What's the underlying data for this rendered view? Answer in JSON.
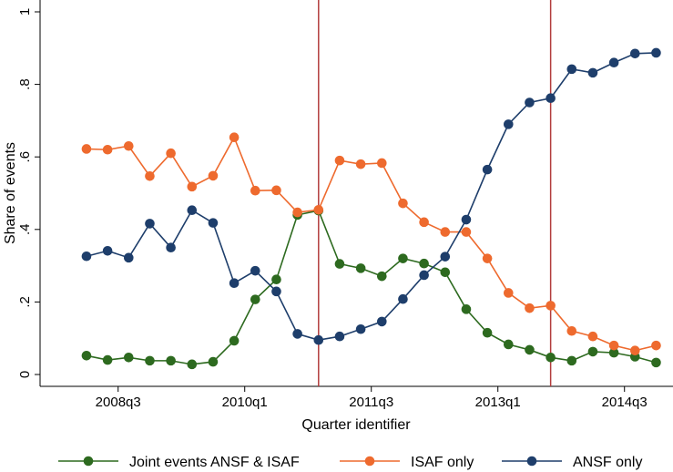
{
  "chart_data": {
    "type": "line",
    "xlabel": "Quarter identifier",
    "ylabel": "Share of events",
    "ylim": [
      0,
      1
    ],
    "xlim": [
      -2.2,
      27.8
    ],
    "x_ticks": [
      {
        "pos": 1.5,
        "label": "2008q3"
      },
      {
        "pos": 7.5,
        "label": "2010q1"
      },
      {
        "pos": 13.5,
        "label": "2011q3"
      },
      {
        "pos": 19.5,
        "label": "2013q1"
      },
      {
        "pos": 25.5,
        "label": "2014q3"
      }
    ],
    "y_ticks": [
      {
        "value": 0,
        "label": "0"
      },
      {
        "value": 0.2,
        "label": ".2"
      },
      {
        "value": 0.4,
        "label": ".4"
      },
      {
        "value": 0.6,
        "label": ".6"
      },
      {
        "value": 0.8,
        "label": ".8"
      },
      {
        "value": 1,
        "label": "1"
      }
    ],
    "vlines": [
      11,
      22
    ],
    "vline_color": "#b23c3c",
    "grid": false,
    "legend_position": "bottom",
    "series": [
      {
        "name": "Joint events ANSF & ISAF",
        "color": "#2d6a1f",
        "values": [
          0.052,
          0.04,
          0.047,
          0.038,
          0.038,
          0.028,
          0.035,
          0.093,
          0.207,
          0.262,
          0.44,
          0.452,
          0.305,
          0.293,
          0.271,
          0.32,
          0.306,
          0.282,
          0.18,
          0.115,
          0.083,
          0.068,
          0.047,
          0.038,
          0.063,
          0.06,
          0.049,
          0.033
        ]
      },
      {
        "name": "ISAF only",
        "color": "#ee6a2e",
        "values": [
          0.622,
          0.62,
          0.63,
          0.547,
          0.61,
          0.518,
          0.548,
          0.654,
          0.507,
          0.508,
          0.447,
          0.454,
          0.59,
          0.58,
          0.583,
          0.472,
          0.42,
          0.393,
          0.393,
          0.32,
          0.225,
          0.183,
          0.19,
          0.12,
          0.105,
          0.08,
          0.066,
          0.08
        ]
      },
      {
        "name": "ANSF only",
        "color": "#1e3e6b",
        "values": [
          0.326,
          0.341,
          0.322,
          0.416,
          0.35,
          0.453,
          0.418,
          0.252,
          0.286,
          0.229,
          0.112,
          0.095,
          0.105,
          0.125,
          0.146,
          0.208,
          0.274,
          0.325,
          0.427,
          0.565,
          0.69,
          0.75,
          0.762,
          0.842,
          0.832,
          0.86,
          0.885,
          0.887
        ]
      }
    ]
  }
}
